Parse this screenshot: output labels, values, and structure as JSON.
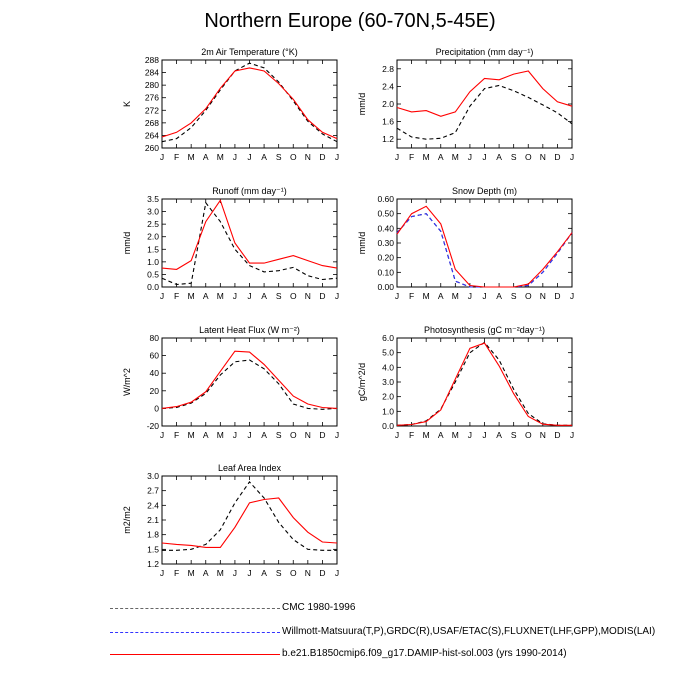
{
  "page": {
    "title": "Northern Europe (60-70N,5-45E)"
  },
  "months": [
    "J",
    "F",
    "M",
    "A",
    "M",
    "J",
    "J",
    "A",
    "S",
    "O",
    "N",
    "D",
    "J"
  ],
  "legend": [
    {
      "label": "CMC 1980-1996",
      "color": "#555555",
      "dash": "long-dash"
    },
    {
      "label": "Willmott-Matsuura(T,P),GRDC(R),USAF/ETAC(S),FLUXNET(LHF,GPP),MODIS(LAI)",
      "color": "#3333ff",
      "dash": "long-dash"
    },
    {
      "label": "b.e21.B1850cmip6.f09_g17.DAMIP-hist-sol.003 (yrs 1990-2014)",
      "color": "#ff0000",
      "dash": "solid"
    }
  ],
  "chart_data": [
    {
      "type": "line",
      "title": "2m Air Temperature (°K)",
      "ylabel": "K",
      "ylim": [
        260,
        288
      ],
      "yticks": [
        260,
        264,
        268,
        272,
        276,
        280,
        284,
        288
      ],
      "yfmt": 0,
      "series": [
        {
          "name": "",
          "color": "#000000",
          "dash": "4,3",
          "values": [
            262,
            263,
            266.5,
            272,
            278.5,
            284.5,
            287,
            285.5,
            281,
            275,
            268.5,
            264.5,
            262
          ]
        },
        {
          "name": "",
          "color": "#ff0000",
          "dash": "",
          "values": [
            263.5,
            265,
            268,
            272.5,
            279,
            284.5,
            285.5,
            284.5,
            280.5,
            275.5,
            269,
            265,
            263
          ]
        }
      ]
    },
    {
      "type": "line",
      "title": "Precipitation (mm day⁻¹)",
      "ylabel": "mm/d",
      "ylim": [
        1.0,
        3.0
      ],
      "yticks": [
        1.2,
        1.6,
        2.0,
        2.4,
        2.8
      ],
      "yfmt": 1,
      "series": [
        {
          "name": "",
          "color": "#000000",
          "dash": "4,3",
          "values": [
            1.45,
            1.25,
            1.2,
            1.22,
            1.35,
            1.95,
            2.35,
            2.42,
            2.3,
            2.15,
            1.98,
            1.8,
            1.55
          ]
        },
        {
          "name": "",
          "color": "#ff0000",
          "dash": "",
          "values": [
            1.92,
            1.82,
            1.85,
            1.72,
            1.82,
            2.28,
            2.58,
            2.55,
            2.68,
            2.75,
            2.35,
            2.05,
            1.95
          ]
        }
      ]
    },
    {
      "type": "line",
      "title": "Runoff (mm day⁻¹)",
      "ylabel": "mm/d",
      "ylim": [
        0,
        3.5
      ],
      "yticks": [
        0.0,
        0.5,
        1.0,
        1.5,
        2.0,
        2.5,
        3.0,
        3.5
      ],
      "yfmt": 1,
      "series": [
        {
          "name": "",
          "color": "#000000",
          "dash": "4,3",
          "values": [
            0.35,
            0.1,
            0.15,
            3.35,
            2.6,
            1.5,
            0.85,
            0.6,
            0.65,
            0.78,
            0.45,
            0.3,
            0.35
          ]
        },
        {
          "name": "",
          "color": "#ff0000",
          "dash": "",
          "values": [
            0.75,
            0.7,
            1.05,
            2.6,
            3.45,
            1.75,
            0.95,
            0.95,
            1.1,
            1.25,
            1.05,
            0.85,
            0.75
          ]
        }
      ]
    },
    {
      "type": "line",
      "title": "Snow Depth (m)",
      "ylabel": "mm/d",
      "ylim": [
        0,
        0.6
      ],
      "yticks": [
        0.0,
        0.1,
        0.2,
        0.3,
        0.4,
        0.5,
        0.6
      ],
      "yfmt": 2,
      "series": [
        {
          "name": "",
          "color": "#000000",
          "dash": "4,3",
          "values": [
            0.37,
            0.48,
            0.5,
            0.38,
            0.04,
            0.0,
            0.0,
            0.0,
            0.0,
            0.01,
            0.1,
            0.23,
            0.37
          ]
        },
        {
          "name": "",
          "color": "#3333ff",
          "dash": "4,3",
          "values": [
            0.37,
            0.48,
            0.5,
            0.38,
            0.04,
            0.0,
            0.0,
            0.0,
            0.0,
            0.01,
            0.1,
            0.23,
            0.37
          ]
        },
        {
          "name": "",
          "color": "#ff0000",
          "dash": "",
          "values": [
            0.36,
            0.5,
            0.55,
            0.43,
            0.12,
            0.01,
            0.0,
            0.0,
            0.0,
            0.02,
            0.12,
            0.24,
            0.37
          ]
        }
      ]
    },
    {
      "type": "line",
      "title": "Latent Heat Flux (W m⁻²)",
      "ylabel": "W/m^2",
      "ylim": [
        -20,
        80
      ],
      "yticks": [
        -20,
        0,
        20,
        40,
        60,
        80
      ],
      "yfmt": 0,
      "series": [
        {
          "name": "",
          "color": "#000000",
          "dash": "4,3",
          "values": [
            0,
            1,
            6,
            17,
            38,
            53,
            55,
            45,
            28,
            5,
            0,
            -1,
            0
          ]
        },
        {
          "name": "",
          "color": "#ff0000",
          "dash": "",
          "values": [
            0,
            2,
            7,
            19,
            42,
            65,
            64,
            50,
            32,
            14,
            5,
            1,
            0
          ]
        }
      ]
    },
    {
      "type": "line",
      "title": "Photosynthesis (gC m⁻²day⁻¹)",
      "ylabel": "gC/m^2/d",
      "ylim": [
        0,
        6.0
      ],
      "yticks": [
        0.0,
        1.0,
        2.0,
        3.0,
        4.0,
        5.0,
        6.0
      ],
      "yfmt": 1,
      "series": [
        {
          "name": "",
          "color": "#000000",
          "dash": "4,3",
          "values": [
            0.05,
            0.1,
            0.35,
            1.15,
            3.0,
            5.0,
            5.7,
            4.5,
            2.5,
            0.85,
            0.15,
            0.05,
            0.05
          ]
        },
        {
          "name": "",
          "color": "#ff0000",
          "dash": "",
          "values": [
            0.05,
            0.1,
            0.3,
            1.1,
            3.2,
            5.3,
            5.65,
            4.1,
            2.2,
            0.65,
            0.12,
            0.05,
            0.05
          ]
        }
      ]
    },
    {
      "type": "line",
      "title": "Leaf Area Index",
      "ylabel": "m2/m2",
      "ylim": [
        1.2,
        3.0
      ],
      "yticks": [
        1.2,
        1.5,
        1.8,
        2.1,
        2.4,
        2.7,
        3.0
      ],
      "yfmt": 1,
      "series": [
        {
          "name": "",
          "color": "#000000",
          "dash": "4,3",
          "values": [
            1.48,
            1.48,
            1.5,
            1.6,
            1.9,
            2.45,
            2.88,
            2.55,
            2.05,
            1.7,
            1.5,
            1.48,
            1.48
          ]
        },
        {
          "name": "",
          "color": "#ff0000",
          "dash": "",
          "values": [
            1.63,
            1.6,
            1.58,
            1.54,
            1.54,
            1.95,
            2.45,
            2.52,
            2.55,
            2.15,
            1.85,
            1.65,
            1.63
          ]
        }
      ]
    }
  ]
}
